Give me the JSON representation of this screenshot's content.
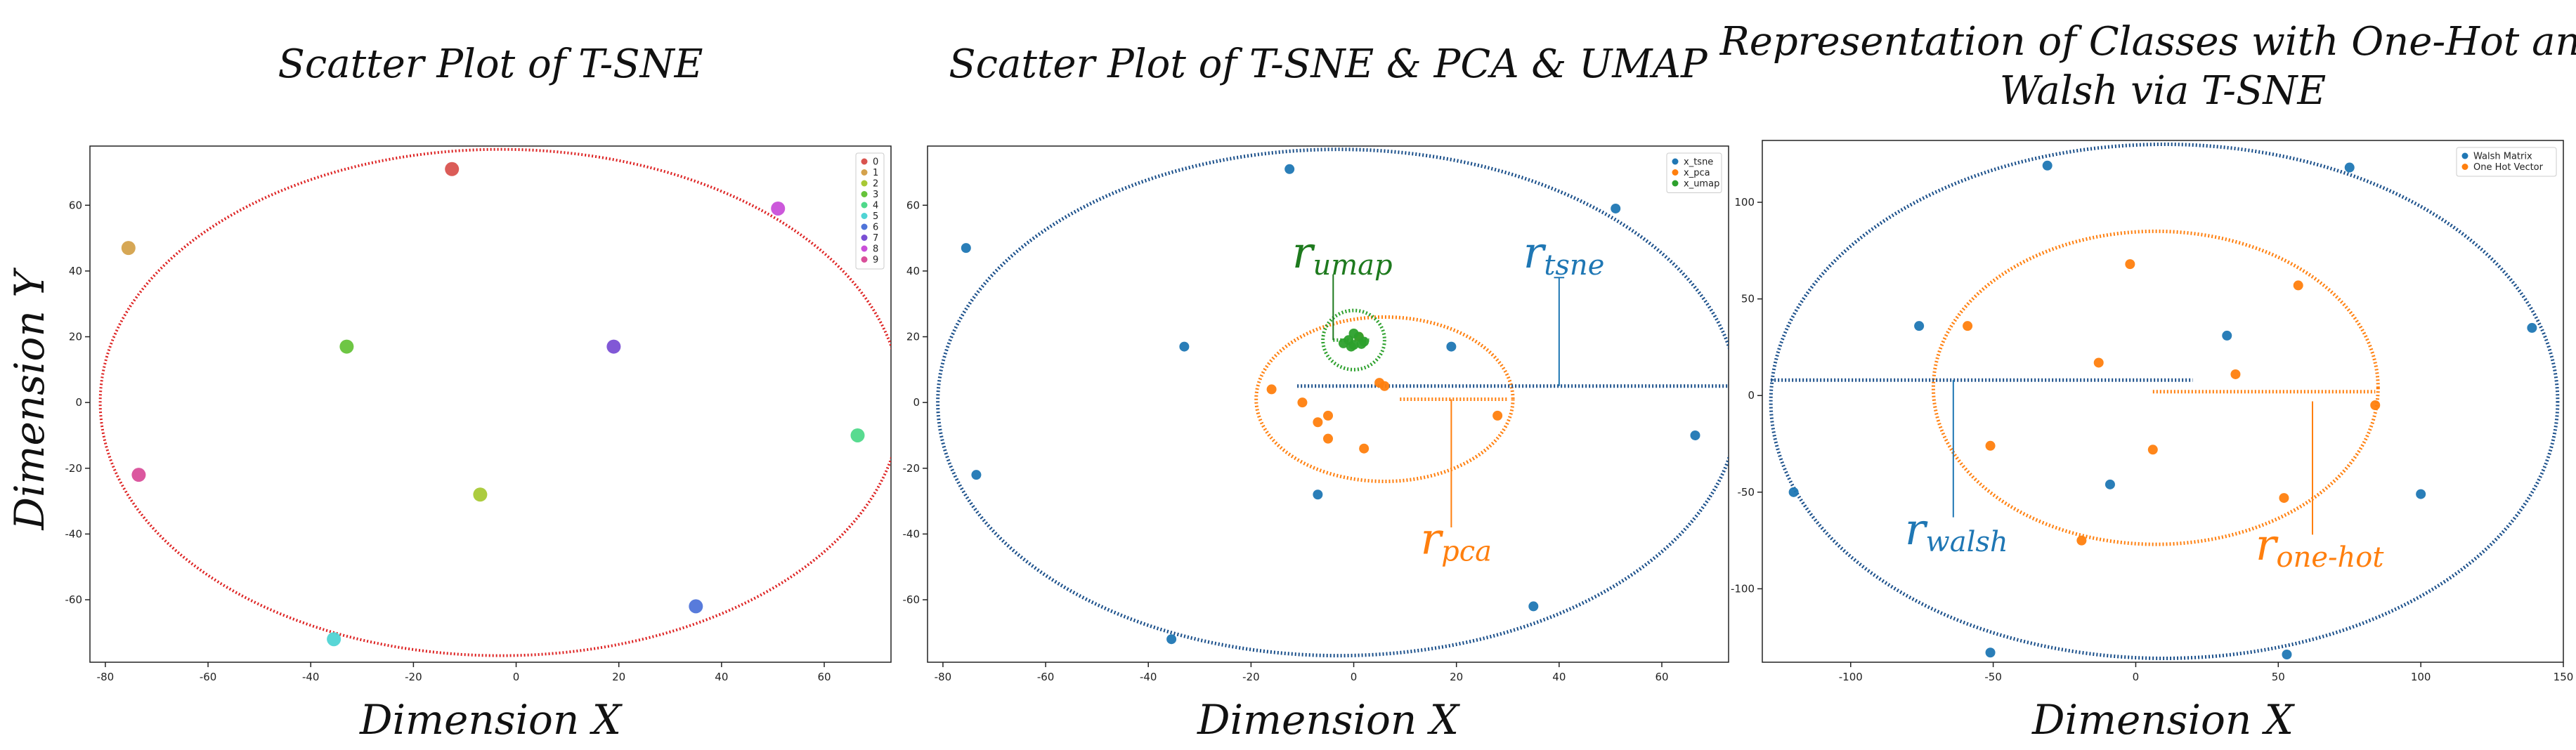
{
  "figure": {
    "y_axis_title": "Dimension Y"
  },
  "chart_data": [
    {
      "type": "scatter",
      "title": "Scatter Plot of T-SNE",
      "xlabel": "Dimension X",
      "ylabel": "Dimension Y",
      "xlim": [
        -83,
        73
      ],
      "ylim": [
        -79,
        78
      ],
      "xticks": [
        -80,
        -60,
        -40,
        -20,
        0,
        20,
        40,
        60
      ],
      "yticks": [
        -60,
        -40,
        -20,
        0,
        20,
        40,
        60
      ],
      "legend_placement": "top-right",
      "series": [
        {
          "name": "0",
          "color": "#d9534f",
          "x": [
            -12.5
          ],
          "y": [
            71
          ]
        },
        {
          "name": "1",
          "color": "#d4a24c",
          "x": [
            -75.5
          ],
          "y": [
            47
          ]
        },
        {
          "name": "2",
          "color": "#a8c935",
          "x": [
            -7
          ],
          "y": [
            -28
          ]
        },
        {
          "name": "3",
          "color": "#66c33a",
          "x": [
            -33
          ],
          "y": [
            17
          ]
        },
        {
          "name": "4",
          "color": "#4fd98a",
          "x": [
            66.5
          ],
          "y": [
            -10
          ]
        },
        {
          "name": "5",
          "color": "#4fd4d4",
          "x": [
            -35.5
          ],
          "y": [
            -72
          ]
        },
        {
          "name": "6",
          "color": "#4f74d9",
          "x": [
            35
          ],
          "y": [
            -62
          ]
        },
        {
          "name": "7",
          "color": "#7a4fd4",
          "x": [
            19
          ],
          "y": [
            17
          ]
        },
        {
          "name": "8",
          "color": "#c94fd9",
          "x": [
            51
          ],
          "y": [
            59
          ]
        },
        {
          "name": "9",
          "color": "#d94f9a",
          "x": [
            -73.5
          ],
          "y": [
            -22
          ]
        }
      ],
      "ellipses": [
        {
          "color": "#dd2222",
          "cx": -3,
          "cy": 0,
          "rx": 78,
          "ry": 77
        }
      ],
      "annotations": []
    },
    {
      "type": "scatter",
      "title": "Scatter Plot of T-SNE & PCA & UMAP",
      "xlabel": "Dimension X",
      "ylabel": "",
      "xlim": [
        -83,
        73
      ],
      "ylim": [
        -79,
        78
      ],
      "xticks": [
        -80,
        -60,
        -40,
        -20,
        0,
        20,
        40,
        60
      ],
      "yticks": [
        -60,
        -40,
        -20,
        0,
        20,
        40,
        60
      ],
      "legend_placement": "top-right",
      "series": [
        {
          "name": "x_tsne",
          "color": "#1f77b4",
          "x": [
            -12.5,
            -75.5,
            -7,
            -33,
            66.5,
            -35.5,
            35,
            19,
            51,
            -73.5
          ],
          "y": [
            71,
            47,
            -28,
            17,
            -10,
            -72,
            -62,
            17,
            59,
            -22
          ]
        },
        {
          "name": "x_pca",
          "color": "#ff7f0e",
          "x": [
            -16,
            -10,
            -7,
            -5,
            -5,
            2,
            5,
            28,
            1,
            6
          ],
          "y": [
            4,
            0,
            -6,
            -4,
            -11,
            -14,
            6,
            -4,
            20,
            5
          ]
        },
        {
          "name": "x_umap",
          "color": "#2ca02c",
          "x": [
            -2,
            -1,
            0,
            1,
            2,
            0,
            -0.5,
            1.5
          ],
          "y": [
            18,
            19,
            17.5,
            20,
            18.5,
            21,
            17,
            17.8
          ]
        }
      ],
      "ellipses": [
        {
          "color": "#1a4f8a",
          "cx": -3,
          "cy": 0,
          "rx": 78,
          "ry": 77
        },
        {
          "color": "#ff7f0e",
          "cx": 6,
          "cy": 1,
          "rx": 25,
          "ry": 25
        },
        {
          "color": "#2ca02c",
          "cx": 0,
          "cy": 19,
          "rx": 6,
          "ry": 9
        }
      ],
      "annotations": [
        {
          "main": "r",
          "sub": "umap",
          "color": "#1e7a1e",
          "x": -12,
          "y": 41
        },
        {
          "main": "r",
          "sub": "tsne",
          "color": "#1f77b4",
          "x": 33,
          "y": 41
        },
        {
          "main": "r",
          "sub": "pca",
          "color": "#ff7f0e",
          "x": 13,
          "y": -46
        }
      ]
    },
    {
      "type": "scatter",
      "title": "Representation of Classes with One-Hot and Walsh via T-SNE",
      "title_lines": [
        "Representation of Classes with One-Hot and",
        "Walsh via T-SNE"
      ],
      "xlabel": "Dimension X",
      "ylabel": "",
      "xlim": [
        -131,
        150
      ],
      "ylim": [
        -138,
        132
      ],
      "xticks": [
        -100,
        -50,
        0,
        50,
        100,
        150
      ],
      "yticks": [
        -100,
        -50,
        0,
        50,
        100
      ],
      "legend_placement": "top-right",
      "series": [
        {
          "name": "Walsh Matrix",
          "color": "#1f77b4",
          "x": [
            -31,
            75,
            -76,
            32,
            -9,
            -51,
            -120,
            53,
            100,
            139
          ],
          "y": [
            119,
            118,
            36,
            31,
            -46,
            -133,
            -50,
            -134,
            -51,
            35
          ]
        },
        {
          "name": "One Hot Vector",
          "color": "#ff7f0e",
          "x": [
            -59,
            -2,
            57,
            -13,
            35,
            -51,
            6,
            -19,
            52,
            84
          ],
          "y": [
            36,
            68,
            57,
            17,
            11,
            -26,
            -28,
            -75,
            -53,
            -5
          ]
        }
      ],
      "ellipses": [
        {
          "color": "#1a4f8a",
          "cx": 10,
          "cy": -3,
          "rx": 138,
          "ry": 133
        },
        {
          "color": "#ff7f0e",
          "cx": 7,
          "cy": 4,
          "rx": 78,
          "ry": 81
        }
      ],
      "annotations": [
        {
          "main": "r",
          "sub": "walsh",
          "color": "#1f77b4",
          "x": -81,
          "y": -77
        },
        {
          "main": "r",
          "sub": "one-hot",
          "color": "#ff7f0e",
          "x": 42,
          "y": -85
        }
      ]
    }
  ]
}
